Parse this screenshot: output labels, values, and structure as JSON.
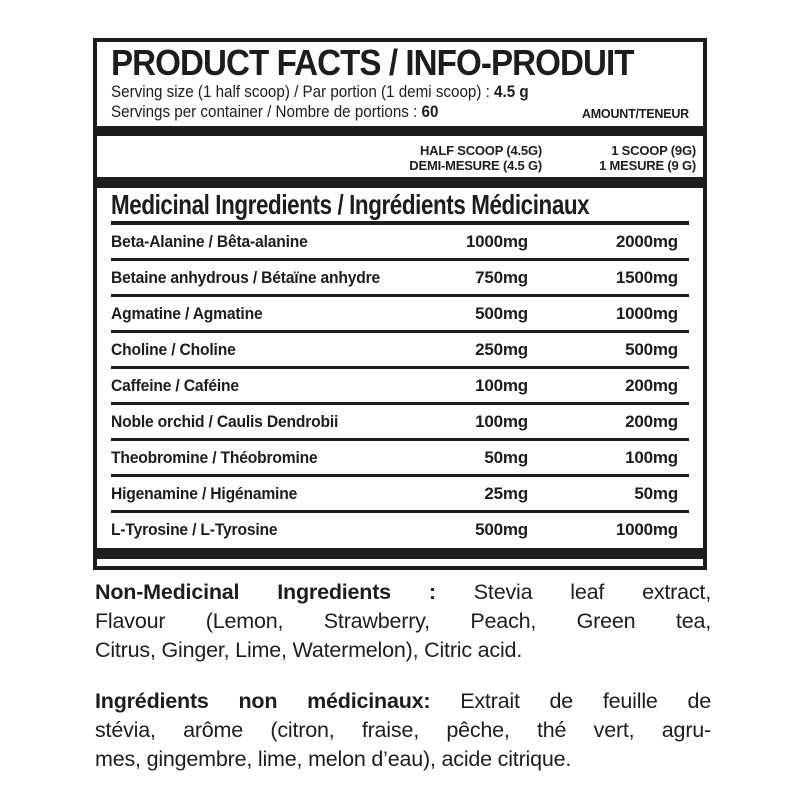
{
  "label": {
    "title": "PRODUCT FACTS / INFO-PRODUIT",
    "serving_size": {
      "label": "Serving size (1 half scoop) / Par portion (1 demi scoop) : ",
      "value": "4.5 g"
    },
    "servings_per_container": {
      "label": "Servings per container / Nombre de portions : ",
      "value": "60"
    },
    "amount_header": "AMOUNT/TENEUR",
    "columns": [
      {
        "line1": "HALF SCOOP (4.5G)",
        "line2": "DEMI-MESURE (4.5 G)"
      },
      {
        "line1": "1 SCOOP (9G)",
        "line2": "1 MESURE (9 G)"
      }
    ],
    "section_header": "Medicinal Ingredients / Ingrédients Médicinaux",
    "ingredients": [
      {
        "name": "Beta-Alanine / Bêta-alanine",
        "half": "1000mg",
        "full": "2000mg"
      },
      {
        "name": "Betaine anhydrous / Bétaïne anhydre",
        "half": "750mg",
        "full": "1500mg"
      },
      {
        "name": "Agmatine / Agmatine",
        "half": "500mg",
        "full": "1000mg"
      },
      {
        "name": "Choline / Choline",
        "half": "250mg",
        "full": "500mg"
      },
      {
        "name": "Caffeine / Caféine",
        "half": "100mg",
        "full": "200mg"
      },
      {
        "name": "Noble orchid / Caulis Dendrobii",
        "half": "100mg",
        "full": "200mg"
      },
      {
        "name": "Theobromine / Théobromine",
        "half": "50mg",
        "full": "100mg"
      },
      {
        "name": "Higenamine / Higénamine",
        "half": "25mg",
        "full": "50mg"
      },
      {
        "name": "L-Tyrosine / L-Tyrosine",
        "half": "500mg",
        "full": "1000mg"
      }
    ]
  },
  "non_medicinal_en": {
    "heading": "Non-Medicinal Ingredients :",
    "line1_rest": " Stevia leaf extract,",
    "line2": "Flavour (Lemon, Strawberry, Peach, Green tea,",
    "line3": "Citrus, Ginger, Lime, Watermelon), Citric acid."
  },
  "non_medicinal_fr": {
    "heading": "Ingrédients non médicinaux:",
    "line1_rest": " Extrait de feuille de",
    "line2": "stévia, arôme (citron, fraise, pêche, thé vert, agru-",
    "line3": "mes, gingembre, lime, melon d’eau), acide citrique."
  },
  "colors": {
    "ink": "#1d1d1b",
    "background": "#ffffff"
  }
}
